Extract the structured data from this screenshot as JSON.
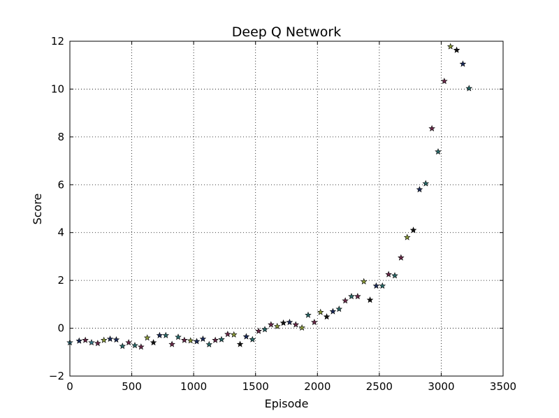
{
  "chart_data": {
    "type": "scatter",
    "title": "Deep Q Network",
    "xlabel": "Episode",
    "ylabel": "Score",
    "xlim": [
      0,
      3500
    ],
    "ylim": [
      -2,
      12
    ],
    "xticks": [
      0,
      500,
      1000,
      1500,
      2000,
      2500,
      3000,
      3500
    ],
    "yticks": [
      -2,
      0,
      2,
      4,
      6,
      8,
      10,
      12
    ],
    "grid": true,
    "marker": "star",
    "x": [
      0,
      75,
      125,
      175,
      225,
      275,
      325,
      375,
      425,
      475,
      525,
      575,
      625,
      675,
      725,
      775,
      825,
      875,
      925,
      975,
      1025,
      1075,
      1125,
      1175,
      1225,
      1275,
      1325,
      1375,
      1425,
      1475,
      1525,
      1575,
      1625,
      1675,
      1725,
      1775,
      1825,
      1875,
      1925,
      1975,
      2025,
      2075,
      2125,
      2175,
      2225,
      2275,
      2325,
      2375,
      2425,
      2475,
      2525,
      2575,
      2625,
      2675,
      2725,
      2775,
      2825,
      2875,
      2925,
      2975,
      3025,
      3075,
      3125,
      3175,
      3225
    ],
    "y": [
      -0.6,
      -0.53,
      -0.5,
      -0.6,
      -0.63,
      -0.5,
      -0.45,
      -0.48,
      -0.75,
      -0.6,
      -0.72,
      -0.78,
      -0.4,
      -0.6,
      -0.3,
      -0.3,
      -0.67,
      -0.37,
      -0.5,
      -0.52,
      -0.55,
      -0.45,
      -0.68,
      -0.5,
      -0.47,
      -0.25,
      -0.27,
      -0.67,
      -0.35,
      -0.47,
      -0.12,
      -0.05,
      0.15,
      0.08,
      0.22,
      0.25,
      0.15,
      0.02,
      0.55,
      0.25,
      0.67,
      0.48,
      0.7,
      0.8,
      1.15,
      1.33,
      1.33,
      1.95,
      1.18,
      1.77,
      1.77,
      2.25,
      2.2,
      2.95,
      3.8,
      4.1,
      5.8,
      6.05,
      8.35,
      7.38,
      10.33,
      11.78,
      11.63,
      11.05,
      10.03
    ],
    "colors": [
      "#3a7a8c",
      "#1a2a5a",
      "#6a2a4a",
      "#3a7a8c",
      "#6a2a4a",
      "#8a9a3a",
      "#1a2a5a",
      "#1a2a5a",
      "#2a6a6a",
      "#6a2a4a",
      "#2a6a6a",
      "#6a2a4a",
      "#8a9a3a",
      "#111111",
      "#1a2a5a",
      "#2a6a6a",
      "#6a2a4a",
      "#2a6a6a",
      "#6a2a4a",
      "#8a9a3a",
      "#1a2a5a",
      "#1a2a5a",
      "#2a6a6a",
      "#6a2a4a",
      "#2a6a6a",
      "#6a2a4a",
      "#8a9a3a",
      "#111111",
      "#1a2a5a",
      "#2a6a6a",
      "#6a2a4a",
      "#2a6a6a",
      "#6a2a4a",
      "#8a9a3a",
      "#111111",
      "#1a2a5a",
      "#6a2a4a",
      "#8a9a3a",
      "#2a6a6a",
      "#6a2a4a",
      "#8a9a3a",
      "#111111",
      "#1a2a5a",
      "#2a6a6a",
      "#6a2a4a",
      "#2a6a6a",
      "#6a2a4a",
      "#8a9a3a",
      "#111111",
      "#1a2a5a",
      "#2a6a6a",
      "#6a2a4a",
      "#2a6a6a",
      "#6a2a4a",
      "#8a9a3a",
      "#111111",
      "#1a2a5a",
      "#2a6a6a",
      "#6a2a4a",
      "#2a6a6a",
      "#6a2a4a",
      "#8a9a3a",
      "#111111",
      "#1a2a5a",
      "#2a6a6a"
    ]
  }
}
